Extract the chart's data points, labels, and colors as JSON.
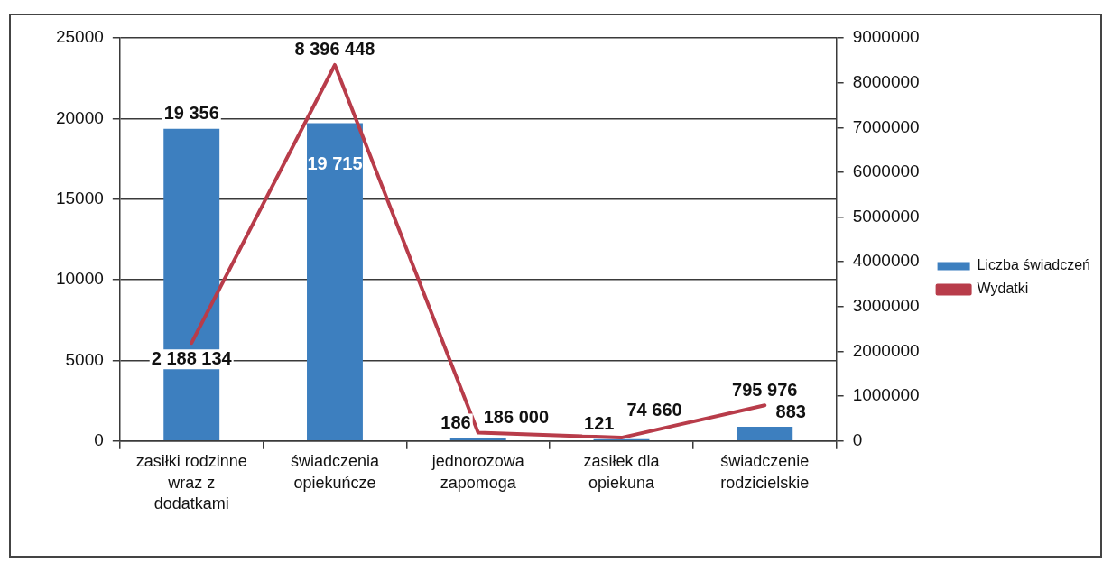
{
  "chart_data": {
    "type": "bar",
    "categories": [
      "zasiłki rodzinne wraz z dodatkami",
      "świadczenia opiekuńcze",
      "jednorozowa zapomoga",
      "zasiłek dla opiekuna",
      "świadczenie rodzicielskie"
    ],
    "series": [
      {
        "name": "Liczba świadczeń",
        "color": "#3d7fbf",
        "values": [
          19356,
          19715,
          186,
          121,
          883
        ],
        "value_labels": [
          "19 356",
          "19 715",
          "186",
          "121",
          "883"
        ]
      },
      {
        "name": "Wydatki",
        "type": "line",
        "axis": "y2",
        "color": "#b83c4a",
        "values": [
          2188134,
          8396448,
          186000,
          74660,
          795976
        ],
        "value_labels": [
          "2 188 134",
          "8 396 448",
          "186 000",
          "74 660",
          "795 976"
        ]
      }
    ],
    "ylim": [
      0,
      25000
    ],
    "yticks": [
      0,
      5000,
      10000,
      15000,
      20000,
      25000
    ],
    "y2lim": [
      0,
      9000000
    ],
    "y2ticks": [
      0,
      1000000,
      2000000,
      3000000,
      4000000,
      5000000,
      6000000,
      7000000,
      8000000,
      9000000
    ],
    "grid": "y",
    "legend": "right"
  }
}
